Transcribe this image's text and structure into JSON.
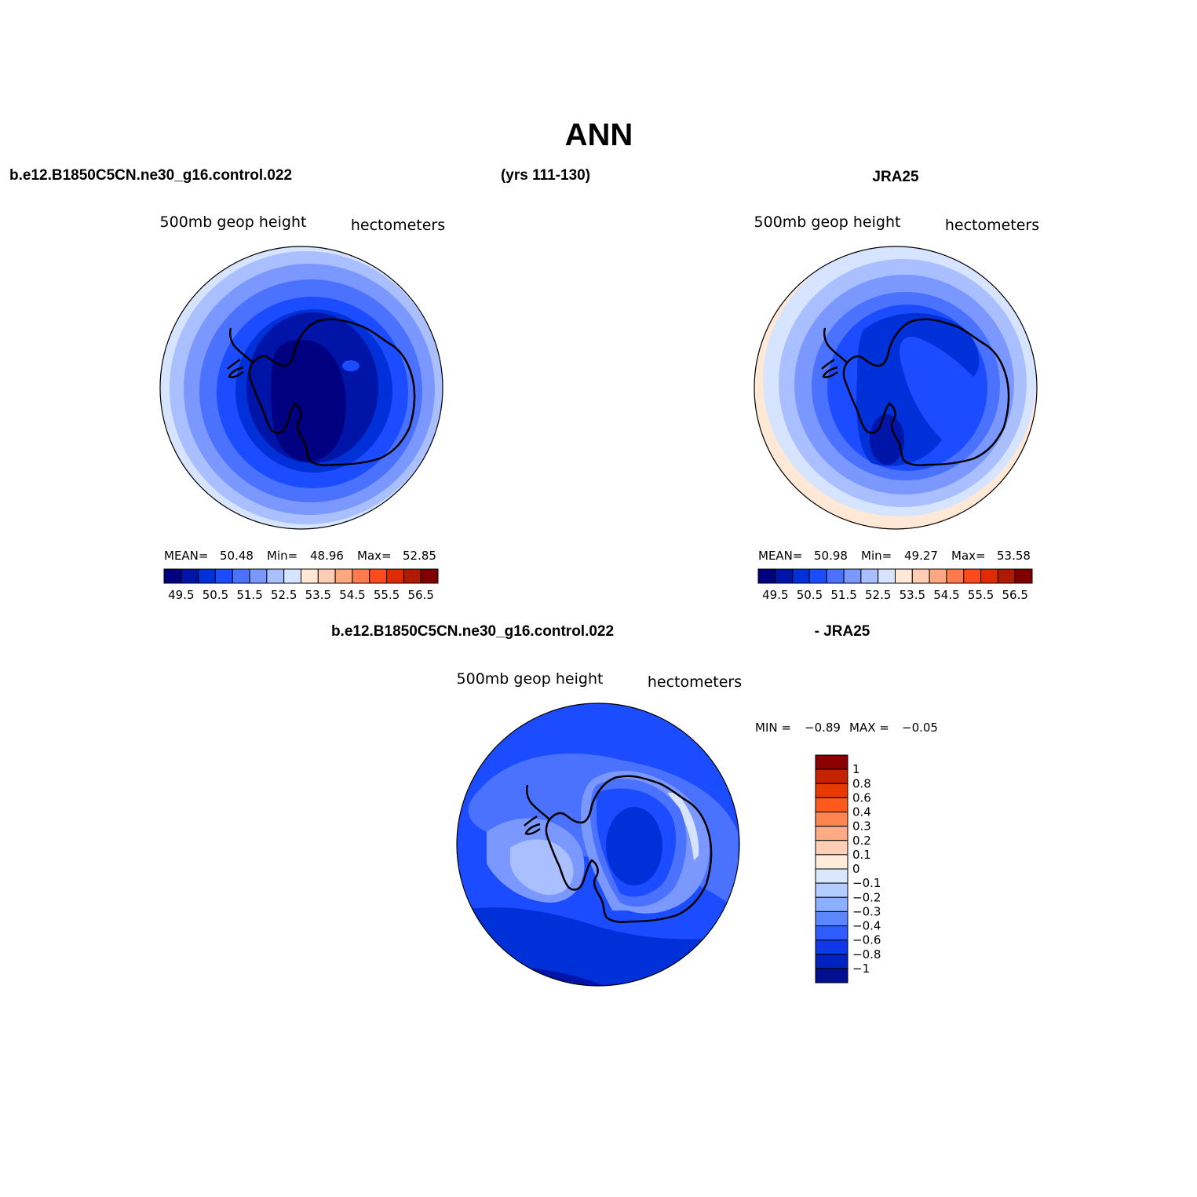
{
  "figure": {
    "title": "ANN",
    "case_name": "b.e12.B1850C5CN.ne30_g16.control.022",
    "years": "(yrs 111-130)",
    "obs_name": "JRA25",
    "diff_left": "b.e12.B1850C5CN.ne30_g16.control.022",
    "diff_right": "- JRA25"
  },
  "panels": [
    {
      "id": "model",
      "variable": "500mb  geop  height",
      "units": "hectometers",
      "stats": {
        "mean_label": "MEAN=",
        "mean": "50.48",
        "min_label": "Min=",
        "min": "48.96",
        "max_label": "Max=",
        "max": "52.85"
      }
    },
    {
      "id": "obs",
      "variable": "500mb  geop  height",
      "units": "hectometers",
      "stats": {
        "mean_label": "MEAN=",
        "mean": "50.98",
        "min_label": "Min=",
        "min": "49.27",
        "max_label": "Max=",
        "max": "53.58"
      }
    },
    {
      "id": "diff",
      "variable": "500mb  geop  height",
      "units": "hectometers",
      "stats": {
        "min_label": "MIN =",
        "min": "−0.89",
        "max_label": "MAX =",
        "max": "−0.05"
      }
    }
  ],
  "colorbar_main": {
    "colors": [
      "#000080",
      "#0014a8",
      "#0030d8",
      "#1c4cff",
      "#4b72ff",
      "#7a98ff",
      "#a9bfff",
      "#d6e4ff",
      "#ffe8d6",
      "#ffcdb3",
      "#ffa880",
      "#ff7a4c",
      "#ff4a1c",
      "#e02a00",
      "#b01a00",
      "#800000"
    ],
    "labels": [
      "49.5",
      "50.5",
      "51.5",
      "52.5",
      "53.5",
      "54.5",
      "55.5",
      "56.5"
    ]
  },
  "colorbar_diff": {
    "colors_top_to_bottom": [
      "#8b0000",
      "#c42200",
      "#e83a00",
      "#ff5a1e",
      "#ff8550",
      "#ffab85",
      "#ffcfb5",
      "#ffebd9",
      "#d9e8ff",
      "#b3cdff",
      "#8cb0ff",
      "#5a87ff",
      "#2e5cff",
      "#1138e8",
      "#0022c0",
      "#000e90"
    ],
    "labels_top_to_bottom": [
      "1",
      "0.8",
      "0.6",
      "0.4",
      "0.3",
      "0.2",
      "0.1",
      "0",
      "−0.1",
      "−0.2",
      "−0.3",
      "−0.4",
      "−0.6",
      "−0.8",
      "−1"
    ]
  },
  "map_colors": {
    "edge": "#000000",
    "coast": "#000000"
  }
}
